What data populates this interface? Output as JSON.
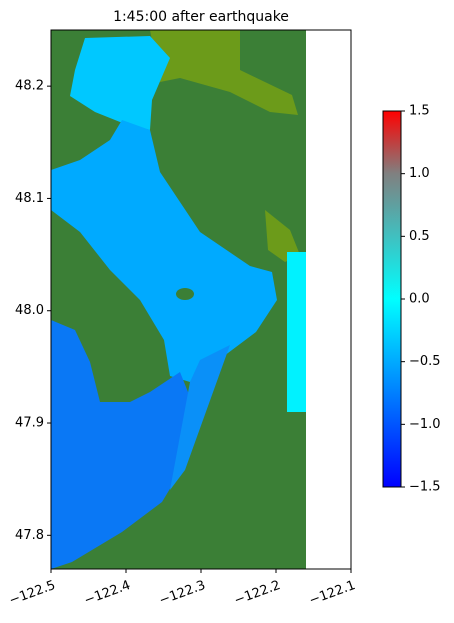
{
  "chart_data": {
    "type": "map",
    "title": "1:45:00 after earthquake",
    "xlim": [
      -122.5,
      -122.1
    ],
    "xticks": [
      {
        "value": -122.5,
        "label": "−122.5"
      },
      {
        "value": -122.4,
        "label": "−122.4"
      },
      {
        "value": -122.3,
        "label": "−122.3"
      },
      {
        "value": -122.2,
        "label": "−122.2"
      },
      {
        "value": -122.1,
        "label": "−122.1"
      }
    ],
    "ylim": [
      47.77,
      48.25
    ],
    "yticks": [
      47.8,
      47.9,
      {
        "value": 48.0,
        "label": "48.0"
      },
      48.1,
      48.2
    ],
    "clim": [
      -1.5,
      1.5
    ],
    "cticks": [
      {
        "value": -1.5,
        "label": "−1.5"
      },
      {
        "value": -1.0,
        "label": "−1.0"
      },
      {
        "value": -0.5,
        "label": "−0.5"
      },
      {
        "value": 0.0,
        "label": "0.0"
      },
      0.5,
      {
        "value": 1.0,
        "label": "1.0"
      },
      1.5
    ],
    "colormap": [
      {
        "value": -1.5,
        "color": "#0000ff"
      },
      {
        "value": 0.0,
        "color": "#00ffff"
      },
      {
        "value": 1.0,
        "color": "#808080"
      },
      {
        "value": 1.5,
        "color": "#ff0000"
      }
    ]
  }
}
